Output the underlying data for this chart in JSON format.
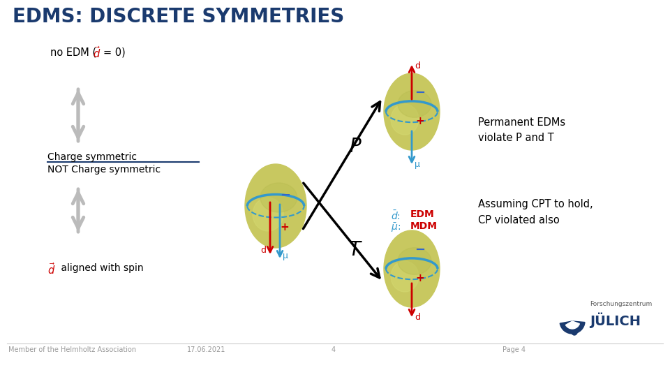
{
  "title": "EDMS: DISCRETE SYMMETRIES",
  "title_color": "#1a3a6e",
  "title_fontsize": 20,
  "bg_color": "#ffffff",
  "charge_sym": "Charge symmetric",
  "not_charge_sym": "NOT Charge symmetric",
  "d_aligned": " aligned with spin",
  "permanent_edm_line1": "Permanent EDMs",
  "permanent_edm_line2": "violate P and T",
  "assuming_cpt_line1": "Assuming CPT to hold,",
  "assuming_cpt_line2": "CP violated also",
  "P_label": "P",
  "T_label": "T",
  "footer_left": "Member of the Helmholtz Association",
  "footer_center": "17.06.2021",
  "footer_num": "4",
  "footer_right": "Page 4",
  "dark_blue": "#1a3a6e",
  "red_color": "#cc0000",
  "cyan_color": "#3399cc",
  "gray_color": "#bbbbbb",
  "olive_light": "#d4d870",
  "olive_dark": "#b8bc50",
  "olive_mid": "#c8c860"
}
